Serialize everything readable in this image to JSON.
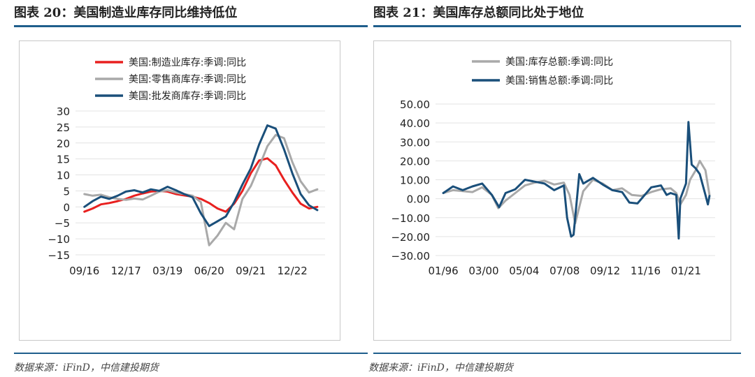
{
  "left": {
    "title": "图表 20：美国制造业库存同比维持低位",
    "source": "数据来源：iFinD，中信建投期货"
  },
  "right": {
    "title": "图表 21：美国库存总额同比处于地位",
    "source": "数据来源：iFinD，中信建投期货"
  },
  "chart_data": [
    {
      "type": "line",
      "x_ticks": [
        "09/16",
        "12/17",
        "03/19",
        "06/20",
        "09/21",
        "12/22"
      ],
      "ylim": [
        -15,
        30
      ],
      "y_ticks": [
        "30",
        "25",
        "20",
        "15",
        "10",
        "5",
        "0",
        "−5",
        "−10",
        "−15"
      ],
      "y_tick_values": [
        30,
        25,
        20,
        15,
        10,
        5,
        0,
        -5,
        -10,
        -15
      ],
      "legend_position": "top-center",
      "series": [
        {
          "name": "美国:制造业库存:季调:同比",
          "color": "#e8201f",
          "x": [
            "2016-09",
            "2016-12",
            "2017-03",
            "2017-06",
            "2017-09",
            "2017-12",
            "2018-03",
            "2018-06",
            "2018-09",
            "2018-12",
            "2019-03",
            "2019-06",
            "2019-09",
            "2019-12",
            "2020-03",
            "2020-06",
            "2020-09",
            "2020-12",
            "2021-03",
            "2021-06",
            "2021-09",
            "2021-12",
            "2022-03",
            "2022-06",
            "2022-09",
            "2022-12",
            "2023-03",
            "2023-06",
            "2023-09"
          ],
          "y": [
            -1.5,
            -0.5,
            0.8,
            1.2,
            1.8,
            2.5,
            3.5,
            4.2,
            4.8,
            5.0,
            4.8,
            4.0,
            3.6,
            3.2,
            2.5,
            1.2,
            -0.5,
            -1.5,
            1.0,
            5.0,
            10.5,
            14.5,
            15.2,
            13.0,
            8.5,
            4.5,
            1.0,
            -0.5,
            0.0
          ]
        },
        {
          "name": "美国:零售商库存:季调:同比",
          "color": "#a9a9a9",
          "x": [
            "2016-09",
            "2016-12",
            "2017-03",
            "2017-06",
            "2017-09",
            "2017-12",
            "2018-03",
            "2018-06",
            "2018-09",
            "2018-12",
            "2019-03",
            "2019-06",
            "2019-09",
            "2019-12",
            "2020-03",
            "2020-06",
            "2020-09",
            "2020-12",
            "2021-03",
            "2021-06",
            "2021-09",
            "2021-12",
            "2022-03",
            "2022-06",
            "2022-09",
            "2022-12",
            "2023-03",
            "2023-06",
            "2023-09"
          ],
          "y": [
            4.0,
            3.5,
            3.8,
            3.0,
            2.5,
            2.2,
            2.6,
            2.3,
            3.5,
            4.8,
            5.2,
            4.5,
            4.0,
            3.5,
            1.5,
            -12.0,
            -9.0,
            -5.0,
            -7.0,
            2.5,
            6.5,
            12.5,
            19.0,
            22.5,
            21.5,
            14.0,
            8.0,
            4.5,
            5.5
          ]
        },
        {
          "name": "美国:批发商库存:季调:同比",
          "color": "#1a4f7a",
          "x": [
            "2016-09",
            "2016-12",
            "2017-03",
            "2017-06",
            "2017-09",
            "2017-12",
            "2018-03",
            "2018-06",
            "2018-09",
            "2018-12",
            "2019-03",
            "2019-06",
            "2019-09",
            "2019-12",
            "2020-03",
            "2020-06",
            "2020-09",
            "2020-12",
            "2021-03",
            "2021-06",
            "2021-09",
            "2021-12",
            "2022-03",
            "2022-06",
            "2022-09",
            "2022-12",
            "2023-03",
            "2023-06",
            "2023-09"
          ],
          "y": [
            0.0,
            1.8,
            3.2,
            2.5,
            3.5,
            4.8,
            5.2,
            4.5,
            5.5,
            5.0,
            6.3,
            5.2,
            4.0,
            3.0,
            -2.0,
            -6.0,
            -4.5,
            -3.0,
            1.5,
            7.0,
            12.0,
            19.5,
            25.5,
            24.5,
            18.0,
            10.5,
            4.0,
            0.5,
            -1.0
          ]
        }
      ]
    },
    {
      "type": "line",
      "x_ticks": [
        "01/96",
        "03/00",
        "05/04",
        "07/08",
        "09/12",
        "11/16",
        "01/21"
      ],
      "ylim": [
        -30,
        50
      ],
      "y_ticks": [
        "50.00",
        "40.00",
        "30.00",
        "20.00",
        "10.00",
        "0.00",
        "−10.00",
        "−20.00",
        "−30.00"
      ],
      "y_tick_values": [
        50,
        40,
        30,
        20,
        10,
        0,
        -10,
        -20,
        -30
      ],
      "legend_position": "top-center",
      "series": [
        {
          "name": "美国:库存总额:季调:同比",
          "color": "#a9a9a9",
          "x": [
            "1996-01",
            "1997-01",
            "1998-01",
            "1999-01",
            "2000-01",
            "2001-01",
            "2001-09",
            "2002-06",
            "2003-06",
            "2004-06",
            "2005-06",
            "2006-06",
            "2007-06",
            "2008-06",
            "2009-01",
            "2009-08",
            "2010-06",
            "2011-06",
            "2012-06",
            "2013-06",
            "2014-06",
            "2015-06",
            "2016-06",
            "2017-06",
            "2018-06",
            "2019-06",
            "2020-01",
            "2020-06",
            "2021-01",
            "2021-06",
            "2022-01",
            "2022-06",
            "2023-01",
            "2023-06"
          ],
          "y": [
            3.0,
            4.5,
            4.0,
            3.5,
            6.0,
            2.0,
            -5.0,
            -1.0,
            3.0,
            7.0,
            8.5,
            9.5,
            7.5,
            8.5,
            2.0,
            -13.0,
            4.0,
            10.0,
            8.0,
            4.5,
            5.5,
            2.0,
            1.5,
            3.5,
            5.0,
            5.5,
            3.0,
            -3.0,
            2.0,
            10.0,
            15.0,
            20.0,
            15.0,
            2.0
          ]
        },
        {
          "name": "美国:销售总额:季调:同比",
          "color": "#1a4f7a",
          "x": [
            "1996-01",
            "1997-01",
            "1998-01",
            "1999-01",
            "2000-01",
            "2001-01",
            "2001-10",
            "2002-06",
            "2003-06",
            "2004-06",
            "2005-06",
            "2006-06",
            "2007-06",
            "2008-06",
            "2008-10",
            "2009-03",
            "2009-06",
            "2010-01",
            "2010-06",
            "2011-06",
            "2012-06",
            "2013-06",
            "2014-06",
            "2015-03",
            "2016-01",
            "2017-06",
            "2018-06",
            "2019-01",
            "2019-06",
            "2020-01",
            "2020-04",
            "2020-06",
            "2021-01",
            "2021-04",
            "2021-08",
            "2022-01",
            "2022-06",
            "2023-01",
            "2023-04",
            "2023-06"
          ],
          "y": [
            3.0,
            6.5,
            4.5,
            6.5,
            8.0,
            2.0,
            -4.5,
            3.0,
            5.0,
            10.0,
            9.0,
            8.0,
            4.5,
            7.0,
            -10.0,
            -20.0,
            -19.0,
            13.0,
            8.0,
            11.0,
            7.5,
            4.5,
            3.5,
            -2.0,
            -2.5,
            6.0,
            7.0,
            2.0,
            3.0,
            2.0,
            -21.0,
            0.0,
            8.0,
            40.5,
            18.0,
            16.0,
            13.0,
            2.0,
            -3.0,
            1.5
          ]
        }
      ]
    }
  ]
}
